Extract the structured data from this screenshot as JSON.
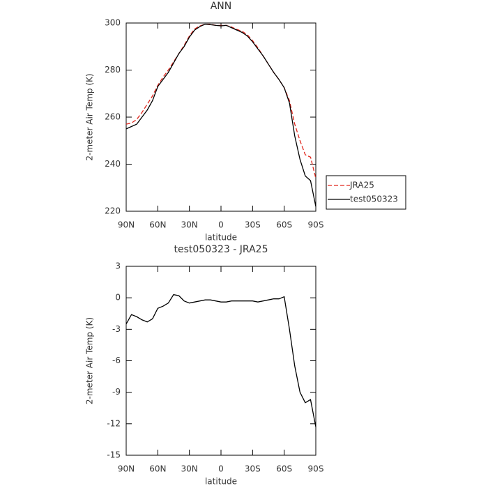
{
  "chart_data": [
    {
      "type": "line",
      "title": "ANN",
      "xlabel": "latitude",
      "ylabel": "2-meter Air Temp (K)",
      "x": [
        90,
        85,
        80,
        75,
        70,
        65,
        60,
        55,
        50,
        45,
        40,
        35,
        30,
        25,
        20,
        15,
        10,
        5,
        0,
        -5,
        -10,
        -15,
        -20,
        -25,
        -30,
        -35,
        -40,
        -45,
        -50,
        -55,
        -60,
        -65,
        -70,
        -75,
        -80,
        -85,
        -90
      ],
      "xlim": [
        90,
        -90
      ],
      "xticks": [
        {
          "value": 90,
          "label": "90N"
        },
        {
          "value": 60,
          "label": "60N"
        },
        {
          "value": 30,
          "label": "30N"
        },
        0,
        {
          "value": -30,
          "label": "30S"
        },
        {
          "value": -60,
          "label": "60S"
        },
        {
          "value": -90,
          "label": "90S"
        }
      ],
      "ylim": [
        220,
        300
      ],
      "yticks": [
        220,
        240,
        260,
        280,
        300
      ],
      "legend": "outside-right",
      "grid": false,
      "series": [
        {
          "name": "JRA25",
          "color": "#e0261c",
          "dash": true,
          "values": [
            257,
            257.5,
            259,
            262,
            265.5,
            269,
            273.5,
            277,
            280,
            283.5,
            287,
            290.5,
            294.5,
            297.5,
            298.8,
            299.5,
            299.5,
            299,
            299,
            299,
            298.3,
            297.3,
            296.5,
            295,
            292.5,
            289.5,
            286,
            282.5,
            279,
            276,
            272.5,
            267,
            257,
            250,
            244,
            243,
            234
          ]
        },
        {
          "name": "test050323",
          "color": "#000000",
          "dash": false,
          "values": [
            255,
            256,
            257,
            260,
            263,
            267,
            273,
            276,
            279,
            283,
            287,
            290,
            294,
            297,
            298.5,
            299.5,
            299.3,
            299,
            298.8,
            299,
            298,
            297,
            296,
            294.5,
            292,
            289,
            286,
            282.5,
            279,
            276,
            272.5,
            266,
            252,
            242,
            235,
            233,
            222
          ]
        }
      ]
    },
    {
      "type": "line",
      "title": "test050323 - JRA25",
      "xlabel": "latitude",
      "ylabel": "2-meter Air Temp (K)",
      "x": [
        90,
        85,
        80,
        75,
        70,
        65,
        60,
        55,
        50,
        45,
        40,
        35,
        30,
        25,
        20,
        15,
        10,
        5,
        0,
        -5,
        -10,
        -15,
        -20,
        -25,
        -30,
        -35,
        -40,
        -45,
        -50,
        -55,
        -60,
        -65,
        -70,
        -75,
        -80,
        -85,
        -90
      ],
      "xlim": [
        90,
        -90
      ],
      "xticks": [
        {
          "value": 90,
          "label": "90N"
        },
        {
          "value": 60,
          "label": "60N"
        },
        {
          "value": 30,
          "label": "30N"
        },
        0,
        {
          "value": -30,
          "label": "30S"
        },
        {
          "value": -60,
          "label": "60S"
        },
        {
          "value": -90,
          "label": "90S"
        }
      ],
      "ylim": [
        -15,
        3
      ],
      "yticks": [
        -15,
        -12,
        -9,
        -6,
        -3,
        0,
        3
      ],
      "grid": false,
      "series": [
        {
          "color": "#000000",
          "dash": false,
          "values": [
            -2.5,
            -1.6,
            -1.8,
            -2.1,
            -2.3,
            -2.0,
            -1.0,
            -0.8,
            -0.5,
            0.3,
            0.2,
            -0.3,
            -0.5,
            -0.4,
            -0.3,
            -0.2,
            -0.2,
            -0.3,
            -0.4,
            -0.4,
            -0.3,
            -0.3,
            -0.3,
            -0.3,
            -0.3,
            -0.4,
            -0.3,
            -0.2,
            -0.1,
            -0.1,
            0.1,
            -3.0,
            -6.5,
            -9.0,
            -10.0,
            -9.7,
            -12.3
          ]
        }
      ]
    }
  ]
}
